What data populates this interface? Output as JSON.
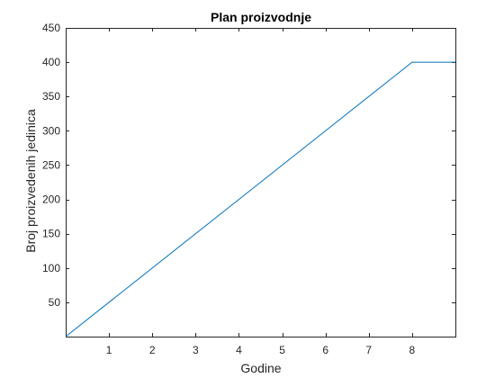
{
  "chart_data": {
    "type": "line",
    "title": "Plan proizvodnje",
    "xlabel": "Godine",
    "ylabel": "Broj proizvedenih jedinica",
    "xlim": [
      0,
      9
    ],
    "ylim": [
      0,
      450
    ],
    "xticks": [
      1,
      2,
      3,
      4,
      5,
      6,
      7,
      8
    ],
    "yticks": [
      50,
      100,
      150,
      200,
      250,
      300,
      350,
      400,
      450
    ],
    "grid": false,
    "series": [
      {
        "color": "#0072BD",
        "x": [
          0,
          8,
          9
        ],
        "y": [
          0,
          400,
          400
        ]
      }
    ]
  }
}
